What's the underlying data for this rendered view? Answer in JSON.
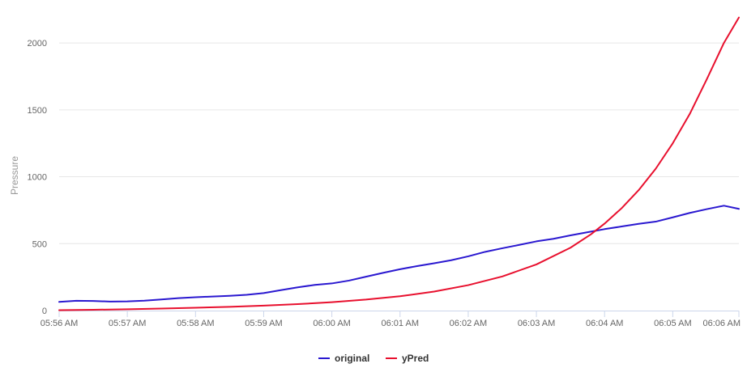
{
  "chart_data": {
    "type": "line",
    "title": "",
    "xlabel": "",
    "ylabel": "Pressure",
    "ylim": [
      0,
      2200
    ],
    "y_ticks": [
      0,
      500,
      1000,
      1500,
      2000
    ],
    "x_categories": [
      "05:56 AM",
      "05:57 AM",
      "05:58 AM",
      "05:59 AM",
      "06:00 AM",
      "06:01 AM",
      "06:02 AM",
      "06:03 AM",
      "06:04 AM",
      "06:05 AM",
      "06:06 AM"
    ],
    "x_minutes": [
      0,
      1,
      2,
      3,
      4,
      5,
      6,
      7,
      8,
      9,
      10
    ],
    "x_end_minute": 9.97,
    "grid": true,
    "legend_position": "bottom",
    "series": [
      {
        "name": "original",
        "color": "#2a18d0",
        "x": [
          0,
          0.25,
          0.5,
          0.75,
          1,
          1.25,
          1.5,
          1.75,
          2,
          2.25,
          2.5,
          2.75,
          3,
          3.25,
          3.5,
          3.75,
          4,
          4.25,
          4.5,
          4.75,
          5,
          5.25,
          5.5,
          5.75,
          6,
          6.25,
          6.5,
          6.75,
          7,
          7.25,
          7.5,
          7.75,
          8,
          8.25,
          8.5,
          8.75,
          9,
          9.25,
          9.5,
          9.75,
          9.97
        ],
        "values": [
          65,
          70,
          68,
          67,
          72,
          78,
          84,
          90,
          96,
          104,
          113,
          122,
          132,
          150,
          170,
          190,
          205,
          228,
          255,
          280,
          305,
          330,
          355,
          380,
          408,
          438,
          462,
          488,
          518,
          540,
          565,
          585,
          605,
          625,
          648,
          668,
          700,
          730,
          755,
          780,
          760
        ]
      },
      {
        "name": "yPred",
        "color": "#e8102e",
        "x": [
          0,
          0.5,
          1,
          1.5,
          2,
          2.5,
          3,
          3.5,
          4,
          4.5,
          5,
          5.5,
          6,
          6.5,
          7,
          7.5,
          7.8,
          8,
          8.25,
          8.5,
          8.75,
          9,
          9.25,
          9.5,
          9.75,
          9.97
        ],
        "values": [
          3,
          6,
          10,
          15,
          21,
          28,
          37,
          48,
          63,
          82,
          107,
          142,
          190,
          255,
          345,
          470,
          570,
          650,
          765,
          900,
          1060,
          1250,
          1470,
          1730,
          2000,
          2190
        ]
      }
    ]
  }
}
